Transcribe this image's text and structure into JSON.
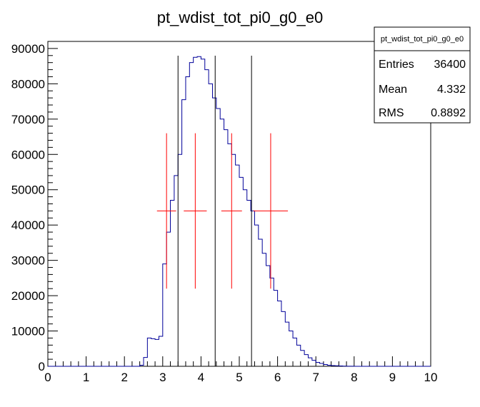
{
  "chart_data": {
    "type": "histogram",
    "title": "pt_wdist_tot_pi0_g0_e0",
    "xlim": [
      0,
      10
    ],
    "ylim": [
      0,
      92000
    ],
    "x_ticks": [
      0,
      1,
      2,
      3,
      4,
      5,
      6,
      7,
      8,
      9,
      10
    ],
    "y_ticks": [
      0,
      10000,
      20000,
      30000,
      40000,
      50000,
      60000,
      70000,
      80000,
      90000
    ],
    "bin_width": 0.1,
    "bins": [
      0.0,
      0.1,
      0.2,
      0.3,
      0.4,
      0.5,
      0.6,
      0.7,
      0.8,
      0.9,
      1.0,
      1.1,
      1.2,
      1.3,
      1.4,
      1.5,
      1.6,
      1.7,
      1.8,
      1.9,
      2.0,
      2.1,
      2.2,
      2.3,
      2.4,
      2.5,
      2.6,
      2.7,
      2.8,
      2.9,
      3.0,
      3.1,
      3.2,
      3.3,
      3.4,
      3.5,
      3.6,
      3.7,
      3.8,
      3.9,
      4.0,
      4.1,
      4.2,
      4.3,
      4.4,
      4.5,
      4.6,
      4.7,
      4.8,
      4.9,
      5.0,
      5.1,
      5.2,
      5.3,
      5.4,
      5.5,
      5.6,
      5.7,
      5.8,
      5.9,
      6.0,
      6.1,
      6.2,
      6.3,
      6.4,
      6.5,
      6.6,
      6.7,
      6.8,
      6.9,
      7.0,
      7.1,
      7.2,
      7.3,
      7.4,
      7.5,
      7.6,
      7.7,
      7.8,
      7.9,
      8.0,
      8.1,
      8.2,
      8.3,
      8.4,
      8.5,
      8.6,
      8.7,
      8.8,
      8.9,
      9.0,
      9.1,
      9.2,
      9.3,
      9.4,
      9.5,
      9.6,
      9.7,
      9.8,
      9.9
    ],
    "counts": [
      0,
      0,
      0,
      0,
      0,
      0,
      0,
      0,
      0,
      0,
      0,
      0,
      0,
      0,
      0,
      0,
      0,
      0,
      0,
      0,
      0,
      0,
      0,
      0,
      300,
      2500,
      8000,
      7800,
      7600,
      8500,
      29000,
      38000,
      47000,
      54000,
      60000,
      75500,
      82000,
      86000,
      87500,
      87700,
      87000,
      84000,
      80000,
      76000,
      73000,
      70000,
      67000,
      63000,
      60000,
      57000,
      53500,
      50000,
      47000,
      44000,
      40000,
      36000,
      32000,
      28500,
      25000,
      21500,
      18500,
      15500,
      12500,
      10000,
      8000,
      6000,
      4500,
      3300,
      2400,
      1700,
      1100,
      800,
      500,
      300,
      200,
      150,
      100,
      50,
      30,
      20,
      10,
      0,
      0,
      0,
      0,
      0,
      0,
      0,
      0,
      0,
      0,
      0,
      0,
      0,
      0,
      0,
      0,
      0,
      0,
      0
    ],
    "vertical_lines": [
      3.4,
      4.37,
      5.32
    ],
    "points": [
      {
        "x": 3.1,
        "y": 44000,
        "xerr": 0.25,
        "yerr": 22000
      },
      {
        "x": 3.85,
        "y": 44000,
        "xerr": 0.3,
        "yerr": 22000
      },
      {
        "x": 4.8,
        "y": 44000,
        "xerr": 0.27,
        "yerr": 22000
      },
      {
        "x": 5.82,
        "y": 44000,
        "xerr": 0.45,
        "yerr": 22000
      }
    ],
    "colors": {
      "histogram": "#000099",
      "points": "#ff0000",
      "lines": "#000000"
    }
  },
  "stats_box": {
    "name": "pt_wdist_tot_pi0_g0_e0",
    "entries_label": "Entries",
    "entries_value": "36400",
    "mean_label": "Mean",
    "mean_value": "4.332",
    "rms_label": "RMS",
    "rms_value": "0.8892"
  }
}
